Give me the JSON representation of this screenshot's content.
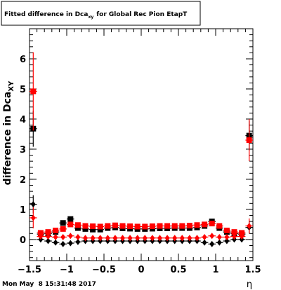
{
  "chart_data": {
    "type": "scatter",
    "title": "Fitted difference in Dca",
    "title_subscript": "xy",
    "title_rest": "for Global Rec Pion EtapT",
    "ylabel": "difference in Dca",
    "ylabel_subscript": "XY",
    "xlabel": "η",
    "timestamp": "Mon May  8 15:31:48 2017",
    "xlim": [
      -1.5,
      1.5
    ],
    "ylim": [
      -0.7,
      7.0
    ],
    "x_ticks": [
      -1.5,
      -1,
      -0.5,
      0,
      0.5,
      1,
      1.5
    ],
    "x_tick_labels": [
      "−1.5",
      "−1",
      "−0.5",
      "0",
      "0.5",
      "1",
      "1.5"
    ],
    "y_ticks": [
      0,
      1,
      2,
      3,
      4,
      5,
      6
    ],
    "y_tick_labels": [
      "0",
      "1",
      "2",
      "3",
      "4",
      "5",
      "6"
    ],
    "grid": false,
    "colors": {
      "black": "#000000",
      "red": "#ff0000",
      "frame": "#000000"
    },
    "series": [
      {
        "color": "#000000",
        "marker": "square",
        "x": [
          -1.45,
          -1.35,
          -1.25,
          -1.15,
          -1.05,
          -0.95,
          -0.85,
          -0.75,
          -0.65,
          -0.55,
          -0.45,
          -0.35,
          -0.25,
          -0.15,
          -0.05,
          0.05,
          0.15,
          0.25,
          0.35,
          0.45,
          0.55,
          0.65,
          0.75,
          0.85,
          0.95,
          1.05,
          1.15,
          1.25,
          1.35,
          1.45
        ],
        "y": [
          3.68,
          0.18,
          0.2,
          0.25,
          0.55,
          0.68,
          0.38,
          0.35,
          0.33,
          0.33,
          0.38,
          0.4,
          0.37,
          0.36,
          0.35,
          0.35,
          0.36,
          0.37,
          0.37,
          0.38,
          0.38,
          0.38,
          0.4,
          0.45,
          0.6,
          0.38,
          0.25,
          0.2,
          0.18,
          3.45
        ],
        "err": [
          0.6,
          0.05,
          0.05,
          0.05,
          0.06,
          0.06,
          0.04,
          0.04,
          0.04,
          0.04,
          0.04,
          0.04,
          0.04,
          0.04,
          0.04,
          0.04,
          0.04,
          0.04,
          0.04,
          0.04,
          0.04,
          0.04,
          0.04,
          0.05,
          0.06,
          0.05,
          0.05,
          0.05,
          0.05,
          0.5
        ]
      },
      {
        "color": "#000000",
        "marker": "diamond",
        "x": [
          -1.45,
          -1.35,
          -1.25,
          -1.15,
          -1.05,
          -0.95,
          -0.85,
          -0.75,
          -0.65,
          -0.55,
          -0.45,
          -0.35,
          -0.25,
          -0.15,
          -0.05,
          0.05,
          0.15,
          0.25,
          0.35,
          0.45,
          0.55,
          0.65,
          0.75,
          0.85,
          0.95,
          1.05,
          1.15,
          1.25,
          1.35,
          1.45
        ],
        "y": [
          1.17,
          0.0,
          -0.05,
          -0.1,
          -0.15,
          -0.12,
          -0.08,
          -0.05,
          -0.05,
          -0.05,
          -0.05,
          -0.05,
          -0.05,
          -0.05,
          -0.05,
          -0.05,
          -0.05,
          -0.05,
          -0.05,
          -0.05,
          -0.05,
          -0.05,
          -0.05,
          -0.1,
          -0.15,
          -0.1,
          -0.05,
          0.0,
          0.0,
          0.4
        ],
        "err": [
          0.3,
          0.04,
          0.04,
          0.04,
          0.04,
          0.04,
          0.04,
          0.04,
          0.04,
          0.04,
          0.04,
          0.04,
          0.04,
          0.04,
          0.04,
          0.04,
          0.04,
          0.04,
          0.04,
          0.04,
          0.04,
          0.04,
          0.04,
          0.04,
          0.04,
          0.04,
          0.04,
          0.04,
          0.04,
          0.2
        ]
      },
      {
        "color": "#ff0000",
        "marker": "square",
        "x": [
          -1.45,
          -1.35,
          -1.25,
          -1.15,
          -1.05,
          -0.95,
          -0.85,
          -0.75,
          -0.65,
          -0.55,
          -0.45,
          -0.35,
          -0.25,
          -0.15,
          -0.05,
          0.05,
          0.15,
          0.25,
          0.35,
          0.45,
          0.55,
          0.65,
          0.75,
          0.85,
          0.95,
          1.05,
          1.15,
          1.25,
          1.35,
          1.45
        ],
        "y": [
          4.92,
          0.22,
          0.25,
          0.3,
          0.35,
          0.5,
          0.48,
          0.45,
          0.44,
          0.43,
          0.45,
          0.47,
          0.45,
          0.44,
          0.43,
          0.43,
          0.44,
          0.45,
          0.45,
          0.45,
          0.45,
          0.46,
          0.48,
          0.5,
          0.53,
          0.45,
          0.3,
          0.25,
          0.22,
          3.3
        ],
        "err": [
          1.3,
          0.05,
          0.05,
          0.05,
          0.05,
          0.05,
          0.04,
          0.04,
          0.04,
          0.04,
          0.04,
          0.04,
          0.04,
          0.04,
          0.04,
          0.04,
          0.04,
          0.04,
          0.04,
          0.04,
          0.04,
          0.04,
          0.04,
          0.04,
          0.05,
          0.05,
          0.05,
          0.05,
          0.05,
          0.7
        ]
      },
      {
        "color": "#ff0000",
        "marker": "diamond",
        "x": [
          -1.45,
          -1.35,
          -1.25,
          -1.15,
          -1.05,
          -0.95,
          -0.85,
          -0.75,
          -0.65,
          -0.55,
          -0.45,
          -0.35,
          -0.25,
          -0.15,
          -0.05,
          0.05,
          0.15,
          0.25,
          0.35,
          0.45,
          0.55,
          0.65,
          0.75,
          0.85,
          0.95,
          1.05,
          1.15,
          1.25,
          1.35,
          1.45
        ],
        "y": [
          0.72,
          0.1,
          0.1,
          0.08,
          0.08,
          0.12,
          0.08,
          0.05,
          0.05,
          0.05,
          0.05,
          0.05,
          0.05,
          0.05,
          0.05,
          0.05,
          0.05,
          0.05,
          0.05,
          0.05,
          0.05,
          0.05,
          0.05,
          0.08,
          0.12,
          0.08,
          0.08,
          0.1,
          0.1,
          0.45
        ],
        "err": [
          0.35,
          0.04,
          0.04,
          0.04,
          0.04,
          0.04,
          0.04,
          0.04,
          0.04,
          0.04,
          0.04,
          0.04,
          0.04,
          0.04,
          0.04,
          0.04,
          0.04,
          0.04,
          0.04,
          0.04,
          0.04,
          0.04,
          0.04,
          0.04,
          0.04,
          0.04,
          0.04,
          0.04,
          0.04,
          0.25
        ]
      }
    ]
  }
}
